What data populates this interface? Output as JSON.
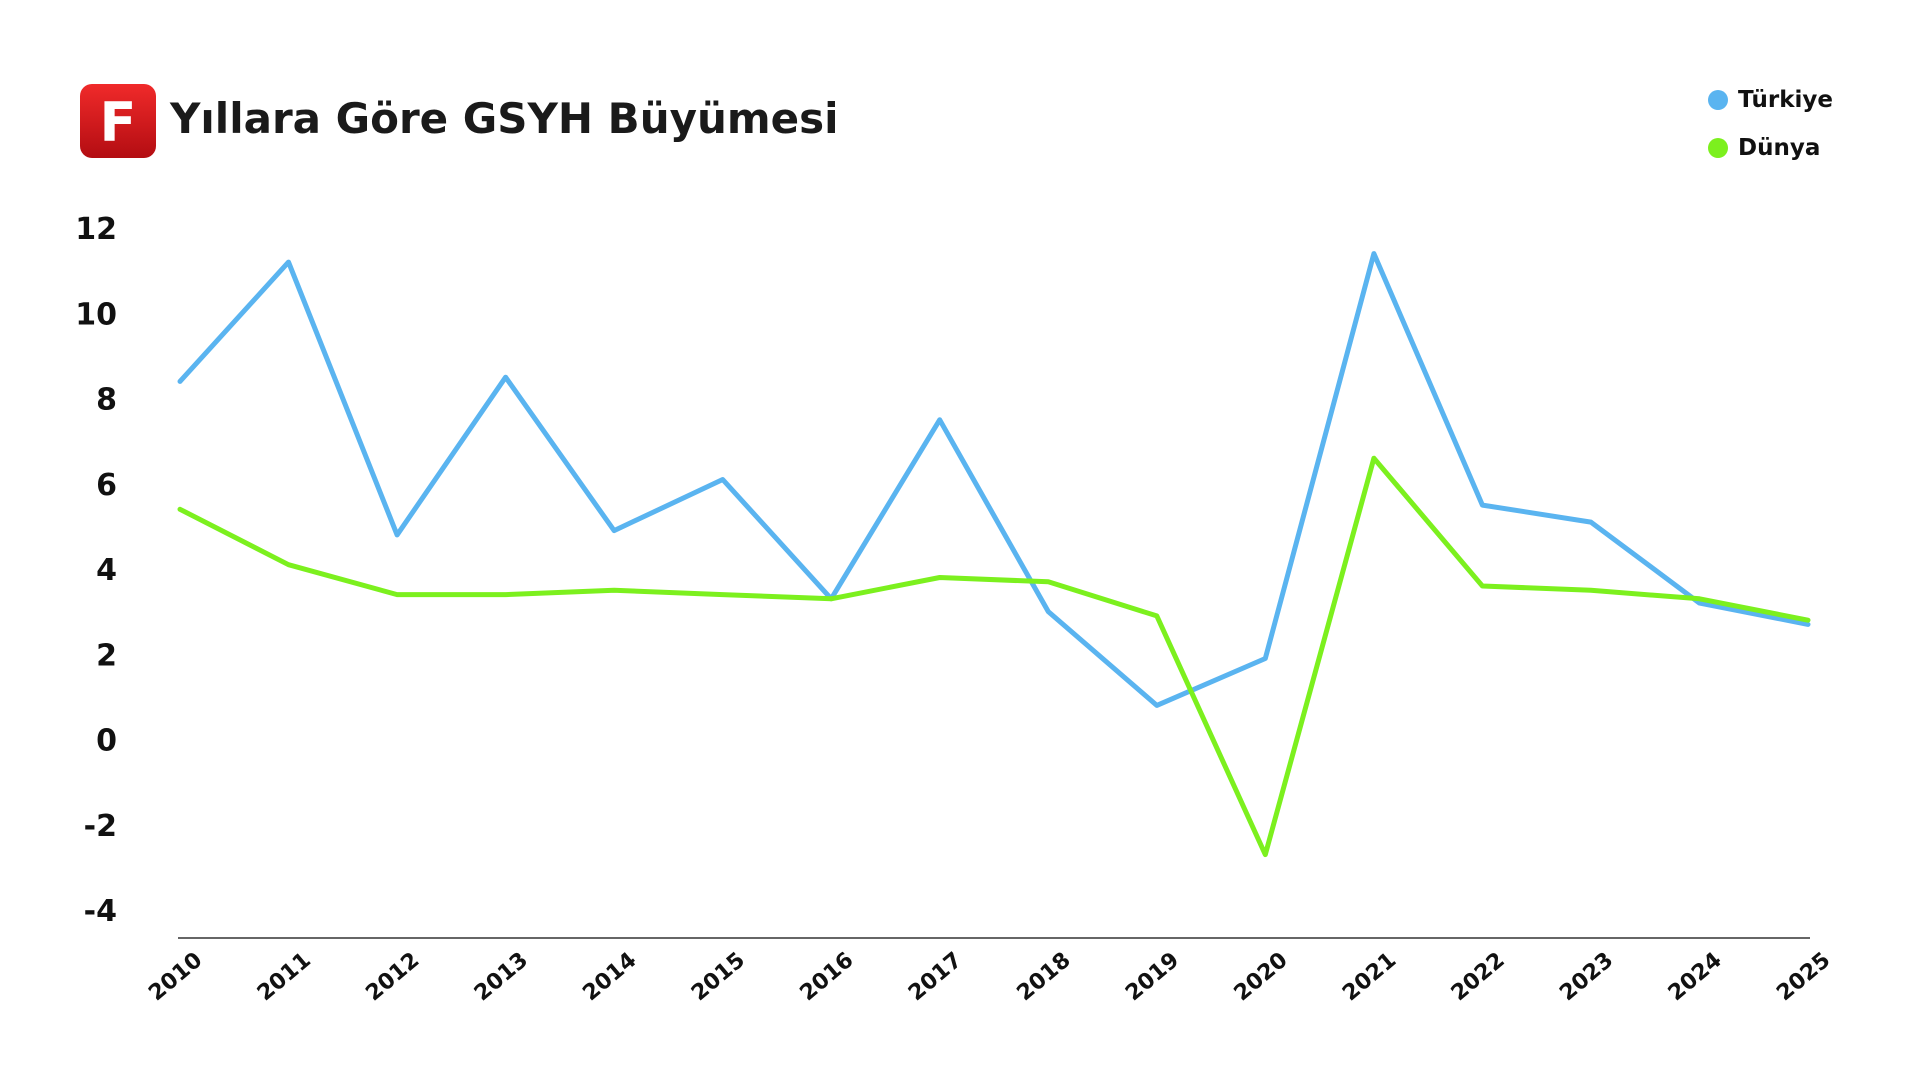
{
  "logo": {
    "letter": "F",
    "color": "#d8151c"
  },
  "chart_data": {
    "type": "line",
    "title": "Yıllara Göre GSYH Büyümesi",
    "xlabel": "",
    "ylabel": "",
    "x": [
      "2010",
      "2011",
      "2012",
      "2013",
      "2014",
      "2015",
      "2016",
      "2017",
      "2018",
      "2019",
      "2020",
      "2021",
      "2022",
      "2023",
      "2024",
      "2025"
    ],
    "ylim": [
      -4,
      12
    ],
    "yticks": [
      12,
      10,
      8,
      6,
      4,
      2,
      0,
      -2,
      -4
    ],
    "grid": false,
    "legend": "top-right",
    "series": [
      {
        "name": "Türkiye",
        "color": "#5ab4f0",
        "values": [
          8.4,
          11.2,
          4.8,
          8.5,
          4.9,
          6.1,
          3.3,
          7.5,
          3.0,
          0.8,
          1.9,
          11.4,
          5.5,
          5.1,
          3.2,
          2.7
        ]
      },
      {
        "name": "Dünya",
        "color": "#7cf01e",
        "values": [
          5.4,
          4.1,
          3.4,
          3.4,
          3.5,
          3.4,
          3.3,
          3.8,
          3.7,
          2.9,
          -2.7,
          6.6,
          3.6,
          3.5,
          3.3,
          2.8
        ]
      }
    ]
  }
}
